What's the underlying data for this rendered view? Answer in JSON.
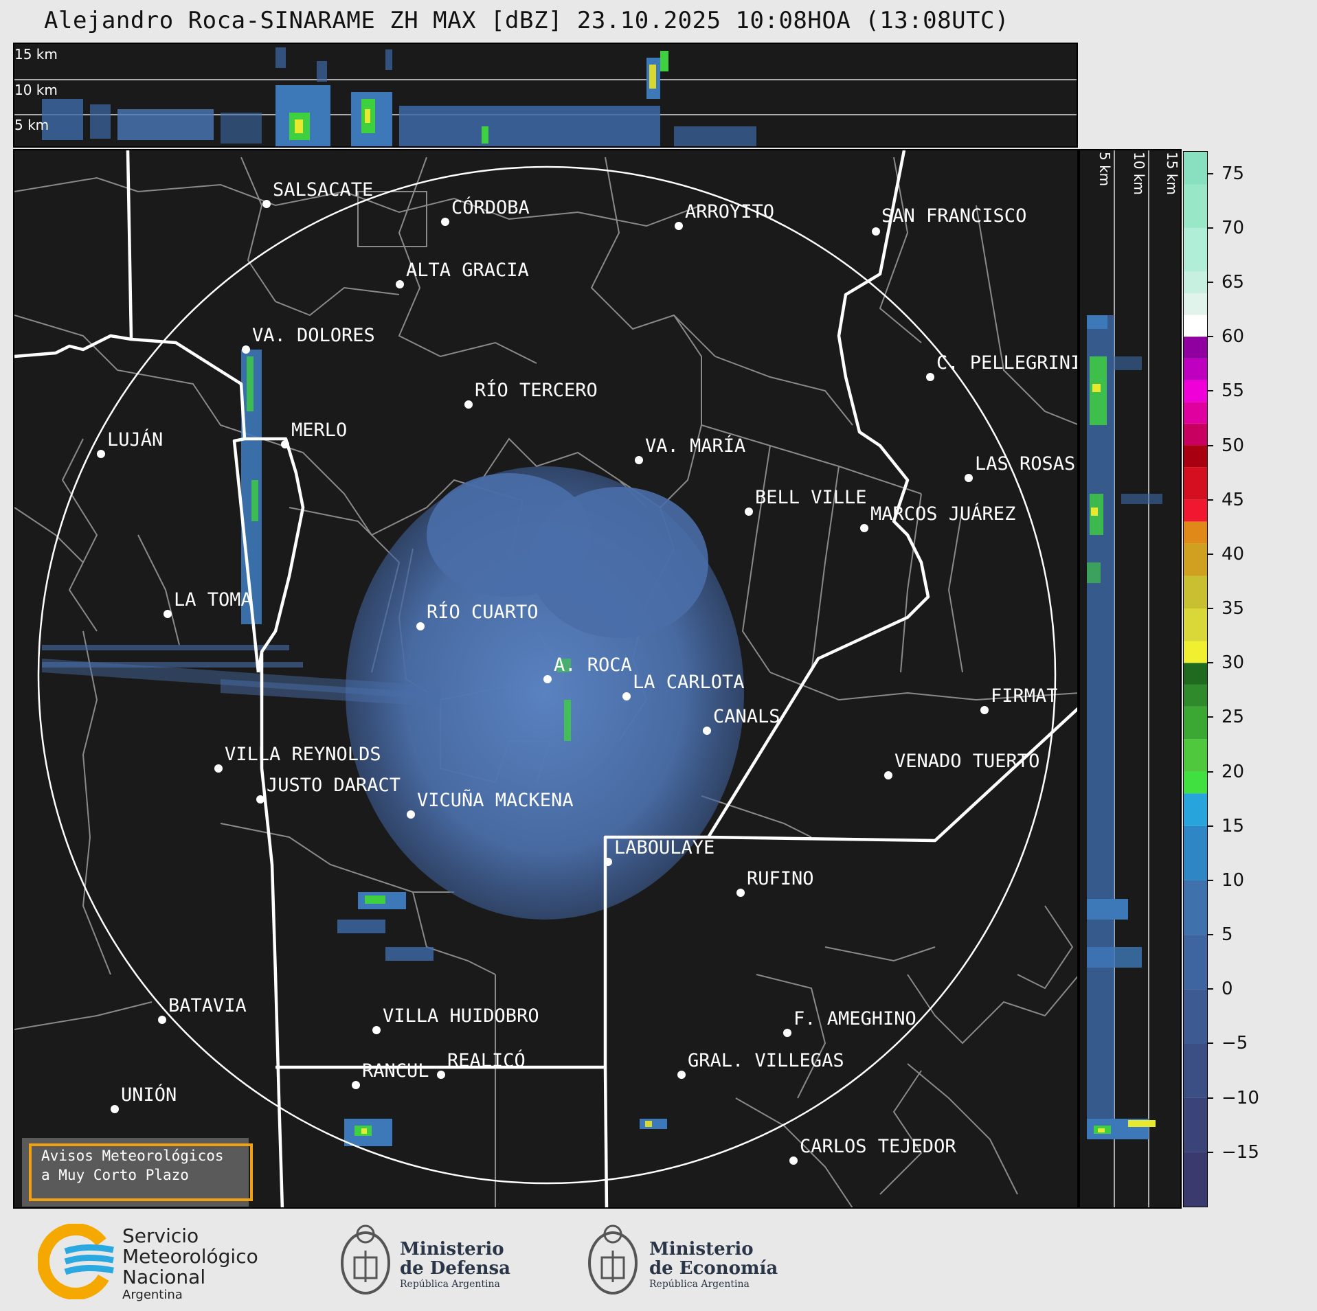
{
  "title": "Alejandro Roca-SINARAME ZH MAX [dBZ] 23.10.2025 10:08HOA (13:08UTC)",
  "top_panel": {
    "altitude_labels": [
      "15 km",
      "10 km",
      "5 km"
    ]
  },
  "side_panel": {
    "altitude_labels": [
      "5 km",
      "10 km",
      "15 km"
    ]
  },
  "colorbar": {
    "unit": "dBZ",
    "ticks": [
      "75",
      "70",
      "65",
      "60",
      "55",
      "50",
      "45",
      "40",
      "35",
      "30",
      "25",
      "20",
      "15",
      "10",
      "5",
      "0",
      "−5",
      "−10",
      "−15"
    ],
    "tick_values": [
      75,
      70,
      65,
      60,
      55,
      50,
      45,
      40,
      35,
      30,
      25,
      20,
      15,
      10,
      5,
      0,
      -5,
      -10,
      -15
    ],
    "range": [
      -20,
      77
    ]
  },
  "cities": [
    {
      "name": "SALSACATE"
    },
    {
      "name": "CÓRDOBA"
    },
    {
      "name": "ARROYITO"
    },
    {
      "name": "SAN FRANCISCO"
    },
    {
      "name": "ALTA GRACIA"
    },
    {
      "name": "VA. DOLORES"
    },
    {
      "name": "C. PELLEGRINI"
    },
    {
      "name": "RÍO TERCERO"
    },
    {
      "name": "LUJÁN"
    },
    {
      "name": "MERLO"
    },
    {
      "name": "VA. MARÍA"
    },
    {
      "name": "LAS ROSAS"
    },
    {
      "name": "BELL VILLE"
    },
    {
      "name": "MARCOS JUÁREZ"
    },
    {
      "name": "LA TOMA"
    },
    {
      "name": "RÍO CUARTO"
    },
    {
      "name": "A. ROCA"
    },
    {
      "name": "LA CARLOTA"
    },
    {
      "name": "FIRMAT"
    },
    {
      "name": "CANALS"
    },
    {
      "name": "VILLA REYNOLDS"
    },
    {
      "name": "VENADO TUERTO"
    },
    {
      "name": "JUSTO DARACT"
    },
    {
      "name": "VICUÑA MACKENA"
    },
    {
      "name": "LABOULAYE"
    },
    {
      "name": "RUFINO"
    },
    {
      "name": "BATAVIA"
    },
    {
      "name": "VILLA HUIDOBRO"
    },
    {
      "name": "F. AMEGHINO"
    },
    {
      "name": "RANCUL"
    },
    {
      "name": "REALICÓ"
    },
    {
      "name": "GRAL. VILLEGAS"
    },
    {
      "name": "UNIÓN"
    },
    {
      "name": "CARLOS TEJEDOR"
    }
  ],
  "aviso": {
    "line1": "Avisos Meteorológicos",
    "line2": "a Muy Corto Plazo"
  },
  "footer": {
    "smn": [
      "Servicio",
      "Meteorológico",
      "Nacional",
      "Argentina"
    ],
    "defensa": [
      "Ministerio",
      "de Defensa",
      "República Argentina"
    ],
    "economia": [
      "Ministerio",
      "de Economía",
      "República Argentina"
    ]
  },
  "colors": {
    "background": "#1a1a1a",
    "echo_blue": "#4a6ea8",
    "boundary": "#ffffff",
    "dept_lines": "#888888",
    "aviso_border": "#f0a010",
    "smn_orange": "#f5a800",
    "smn_blue": "#2aa8e0"
  }
}
